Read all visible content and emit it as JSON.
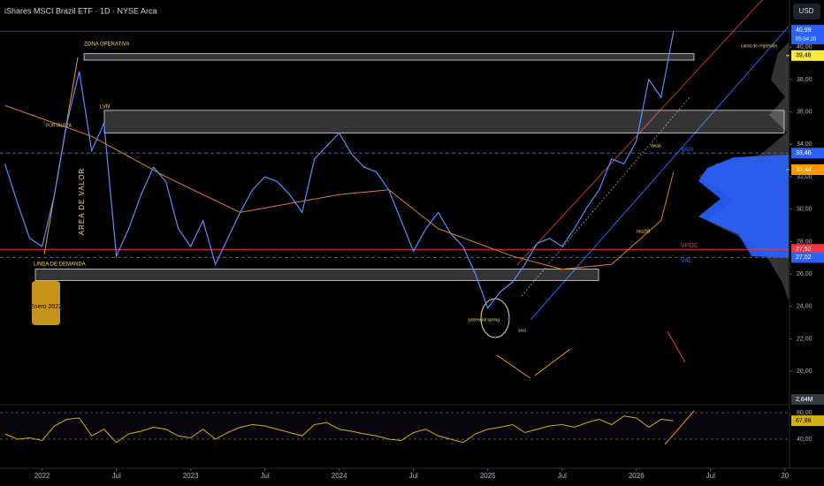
{
  "chart_data": {
    "type": "line",
    "title": "iShares MSCI Brazil ETF · 1D · NYSE Arca",
    "currency": "USD",
    "x": [
      -3,
      -2,
      -1,
      0,
      1,
      2,
      3,
      4,
      5,
      6,
      7,
      8,
      9,
      10,
      11,
      12,
      13,
      14,
      15,
      16,
      17,
      18,
      19,
      20,
      21,
      22,
      23,
      24,
      25,
      26,
      27,
      28,
      29,
      30,
      31,
      32,
      33,
      34,
      35,
      36,
      37,
      38,
      39,
      40,
      41,
      42,
      43,
      44,
      45,
      46,
      47,
      48,
      49,
      50,
      51
    ],
    "values": [
      32.8,
      30.4,
      28.2,
      27.7,
      30.9,
      35.3,
      38.5,
      33.6,
      35.3,
      27.1,
      28.8,
      30.9,
      32.6,
      31.7,
      28.8,
      27.7,
      29.3,
      26.6,
      28.2,
      29.8,
      31.2,
      32.0,
      31.7,
      30.9,
      29.8,
      33.1,
      33.9,
      34.7,
      33.4,
      32.6,
      32.3,
      31.2,
      29.3,
      27.4,
      28.8,
      29.8,
      28.5,
      27.7,
      26.0,
      23.9,
      24.9,
      25.5,
      26.6,
      27.9,
      28.2,
      27.7,
      28.8,
      30.1,
      31.2,
      33.1,
      32.8,
      34.2,
      38.0,
      36.9,
      40.99
    ],
    "color": "#5b8cff",
    "xlim": [
      -3.4,
      60.3
    ],
    "xticks": [
      {
        "value": 0,
        "label": "2022"
      },
      {
        "value": 6,
        "label": "Jul"
      },
      {
        "value": 12,
        "label": "2023"
      },
      {
        "value": 18,
        "label": "Jul"
      },
      {
        "value": 24,
        "label": "2024"
      },
      {
        "value": 30,
        "label": "Jul"
      },
      {
        "value": 36,
        "label": "2025"
      },
      {
        "value": 42,
        "label": "Jul"
      },
      {
        "value": 48,
        "label": "2026"
      },
      {
        "value": 54,
        "label": "Jul"
      },
      {
        "value": 60,
        "label": "20"
      }
    ],
    "ylim": [
      18.1,
      41.0
    ],
    "yticks": [
      {
        "value": 20,
        "label": "20,00"
      },
      {
        "value": 22,
        "label": "22,00"
      },
      {
        "value": 24,
        "label": "24,00"
      },
      {
        "value": 26,
        "label": "26,00"
      },
      {
        "value": 28,
        "label": "28,00"
      },
      {
        "value": 30,
        "label": "30,00"
      },
      {
        "value": 32,
        "label": "32,00"
      },
      {
        "value": 34,
        "label": "34,00"
      },
      {
        "value": 36,
        "label": "36,00"
      },
      {
        "value": 38,
        "label": "38,00"
      },
      {
        "value": 40,
        "label": "40,00"
      }
    ],
    "last_price": {
      "value": 40.99,
      "label": "40,99"
    },
    "countdown": "05:54:20",
    "levels": [
      {
        "value": 39.48,
        "label": "39,48",
        "color": "#ffeb3b"
      },
      {
        "value": 33.46,
        "label": "33,46",
        "color": "#2962ff",
        "name": "VAH"
      },
      {
        "value": 32.44,
        "label": "32,44",
        "color": "#ff9800"
      },
      {
        "value": 27.52,
        "label": "27,52",
        "color": "#f23645",
        "name": "VPOC"
      },
      {
        "value": 27.02,
        "label": "27,02",
        "color": "#2962ff",
        "name": "VAL"
      }
    ],
    "zones": [
      {
        "label": "ZONA OPERATIVA",
        "from": 39.2,
        "to": 39.6
      },
      {
        "label": "LVN",
        "from": 34.7,
        "to": 36.1
      },
      {
        "label": "LINEA DE DEMANDA",
        "from": 25.6,
        "to": 26.3
      }
    ],
    "ma200": {
      "label": "ma200",
      "color": "#e67e22",
      "x": [
        -3,
        4,
        10,
        16,
        24,
        28,
        32,
        38,
        42,
        46,
        50,
        51
      ],
      "values": [
        36.4,
        34.5,
        32.0,
        29.8,
        30.9,
        31.2,
        28.8,
        27.1,
        26.3,
        26.6,
        29.3,
        32.3
      ]
    },
    "annotations": [
      "FORTALEZA",
      "AREA DE VALOR",
      "Enero 2022",
      "canal de regresión.",
      "vwap",
      "potencial spring",
      "sosi"
    ],
    "volume_label": "2,64M",
    "rsi": {
      "color": "#d4b106",
      "ylim": [
        20,
        86.7
      ],
      "yticks": [
        {
          "value": 80,
          "label": "80,00"
        },
        {
          "value": 40,
          "label": "40,00"
        }
      ],
      "last": {
        "value": 67.88,
        "label": "67,88"
      },
      "values": [
        48,
        40,
        42,
        38,
        60,
        70,
        72,
        45,
        55,
        35,
        48,
        52,
        58,
        55,
        45,
        42,
        55,
        40,
        50,
        58,
        62,
        60,
        55,
        50,
        45,
        62,
        65,
        55,
        52,
        48,
        45,
        40,
        38,
        50,
        55,
        45,
        40,
        35,
        48,
        55,
        58,
        62,
        50,
        55,
        60,
        62,
        58,
        65,
        70,
        62,
        75,
        72,
        58,
        70,
        67.88
      ]
    }
  }
}
